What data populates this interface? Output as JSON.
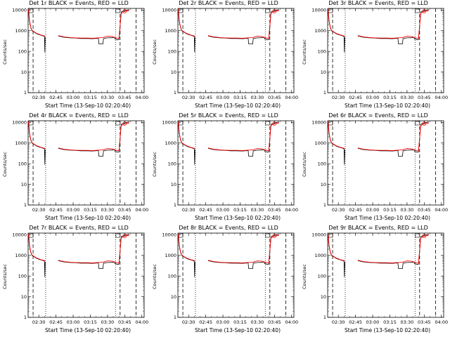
{
  "ylabel": "Counts/sec",
  "xlabel": "Start Time (13-Sep-10 02:20:40)",
  "xticks": [
    "02:30",
    "02:45",
    "03:00",
    "03:15",
    "03:30",
    "03:45",
    "04:00"
  ],
  "yticks": [
    "1",
    "10",
    "100",
    "1000",
    "10000"
  ],
  "colors": {
    "events": "#000000",
    "lld": "#ff0000"
  },
  "chart_data": {
    "type": "line",
    "x_axis": {
      "unit": "time",
      "start": "02:20:40",
      "range": [
        "02:20:40",
        "04:02"
      ]
    },
    "y_axis": {
      "scale": "log",
      "range": [
        1,
        12000
      ]
    },
    "panels": [
      {
        "title": "Det 1r BLACK = Events, RED = LLD"
      },
      {
        "title": "Det 2r BLACK = Events, RED = LLD"
      },
      {
        "title": "Det 3r BLACK = Events, RED = LLD"
      },
      {
        "title": "Det 4r BLACK = Events, RED = LLD"
      },
      {
        "title": "Det 5r BLACK = Events, RED = LLD"
      },
      {
        "title": "Det 6r BLACK = Events, RED = LLD"
      },
      {
        "title": "Det 7r BLACK = Events, RED = LLD"
      },
      {
        "title": "Det 8r BLACK = Events, RED = LLD"
      },
      {
        "title": "Det 9r BLACK = Events, RED = LLD"
      }
    ],
    "dashed_lines": [
      "02:25",
      "03:41",
      "03:55"
    ],
    "dotted_lines": [
      "02:36",
      "03:37"
    ],
    "series": [
      {
        "name": "Events",
        "points": [
          [
            "02:21",
            9000
          ],
          [
            "02:22",
            2500
          ],
          [
            "02:23",
            1400
          ],
          [
            "02:24",
            1000
          ],
          [
            "02:26",
            850
          ],
          [
            "02:28",
            720
          ],
          [
            "02:30",
            650
          ],
          [
            "02:32",
            600
          ],
          [
            "02:34",
            560
          ],
          [
            "02:35",
            520
          ],
          [
            "02:35.3",
            90
          ],
          [
            "02:35.6",
            480
          ],
          [
            "02:47",
            560
          ],
          [
            "02:52",
            480
          ],
          [
            "02:57",
            450
          ],
          [
            "03:02",
            440
          ],
          [
            "03:07",
            420
          ],
          [
            "03:12",
            420
          ],
          [
            "03:17",
            410
          ],
          [
            "03:22",
            430
          ],
          [
            "03:22.5",
            230
          ],
          [
            "03:26",
            230
          ],
          [
            "03:26.5",
            420
          ],
          [
            "03:30",
            450
          ],
          [
            "03:34",
            460
          ],
          [
            "03:36",
            480
          ],
          [
            "03:36.5",
            400
          ],
          [
            "03:38",
            380
          ],
          [
            "03:39",
            360
          ],
          [
            "03:40",
            380
          ],
          [
            "03:42",
            8000
          ],
          [
            "03:45",
            9500
          ],
          [
            "03:49",
            10500
          ]
        ]
      },
      {
        "name": "LLD",
        "points": [
          [
            "02:21",
            11000
          ],
          [
            "02:22",
            2800
          ],
          [
            "02:23",
            1500
          ],
          [
            "02:24",
            1050
          ],
          [
            "02:26",
            880
          ],
          [
            "02:28",
            750
          ],
          [
            "02:30",
            680
          ],
          [
            "02:32",
            620
          ],
          [
            "02:34",
            580
          ],
          [
            "02:35.5",
            540
          ],
          [
            "02:47",
            580
          ],
          [
            "02:52",
            500
          ],
          [
            "02:57",
            470
          ],
          [
            "03:02",
            450
          ],
          [
            "03:07",
            440
          ],
          [
            "03:12",
            440
          ],
          [
            "03:17",
            430
          ],
          [
            "03:22",
            450
          ],
          [
            "03:26",
            470
          ],
          [
            "03:30",
            540
          ],
          [
            "03:34",
            520
          ],
          [
            "03:36",
            480
          ],
          [
            "03:38",
            440
          ],
          [
            "03:40",
            420
          ],
          [
            "03:42",
            7000
          ],
          [
            "03:45",
            8500
          ],
          [
            "03:49",
            9500
          ]
        ]
      }
    ]
  }
}
